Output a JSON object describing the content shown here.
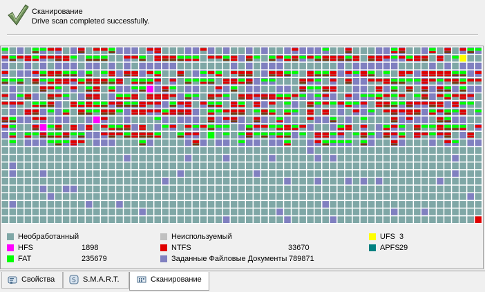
{
  "header": {
    "title": "Сканирование",
    "status": "Drive scan completed successfully."
  },
  "colors": {
    "unprocessed": "#7fa7a6",
    "unused": "#c0c0c0",
    "ufs": "#ffff00",
    "hfs": "#ff00ff",
    "ntfs": "#e00000",
    "apfs": "#008080",
    "fat": "#00ff00",
    "documents": "#8080c0"
  },
  "legend": {
    "unprocessed": {
      "label": "Необработанный"
    },
    "unused": {
      "label": "Неиспользуемый"
    },
    "ufs": {
      "label": "UFS",
      "count": "3"
    },
    "hfs": {
      "label": "HFS",
      "count": "1898"
    },
    "ntfs": {
      "label": "NTFS",
      "count": "33670"
    },
    "apfs": {
      "label": "APFS",
      "count": "29"
    },
    "fat": {
      "label": "FAT",
      "count": "235679"
    },
    "documents": {
      "label": "Заданные Файловые Документы",
      "count": "789871"
    }
  },
  "tabs": [
    {
      "label": "Свойства",
      "icon": "properties-icon",
      "active": false
    },
    {
      "label": "S.M.A.R.T.",
      "icon": "smart-icon",
      "active": false
    },
    {
      "label": "Сканирование",
      "icon": "scan-icon",
      "active": true
    }
  ]
}
